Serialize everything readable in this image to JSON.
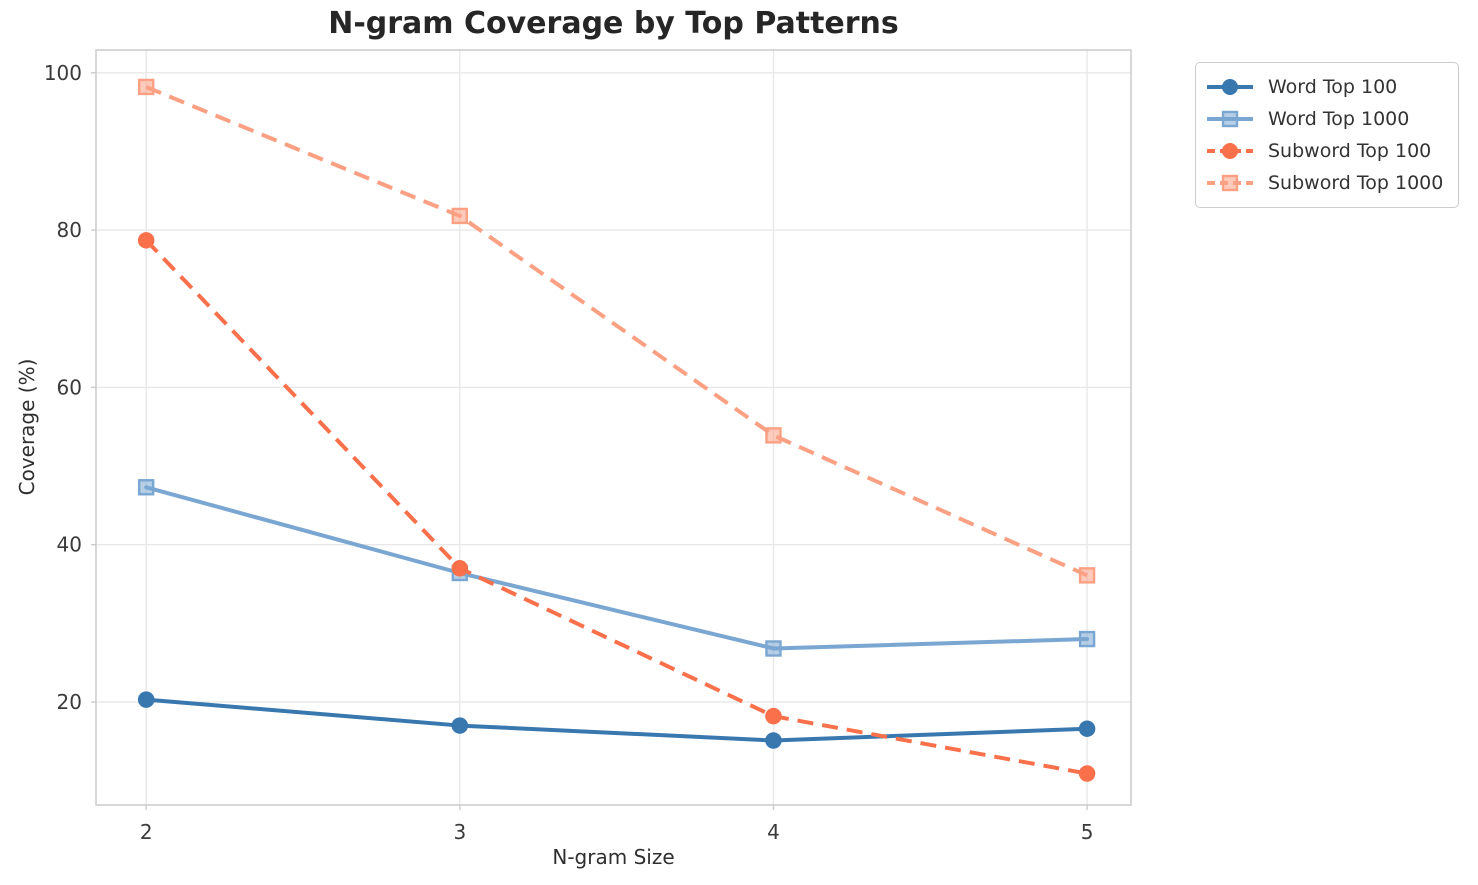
{
  "chart_data": {
    "type": "line",
    "title": "N-gram Coverage by Top Patterns",
    "xlabel": "N-gram Size",
    "ylabel": "Coverage (%)",
    "x": [
      2,
      3,
      4,
      5
    ],
    "xtick_labels": [
      "2",
      "3",
      "4",
      "5"
    ],
    "ytick_values": [
      20,
      40,
      60,
      80,
      100
    ],
    "ytick_labels": [
      "20",
      "40",
      "60",
      "80",
      "100"
    ],
    "xlim": [
      1.84,
      5.14
    ],
    "ylim": [
      6.9,
      102.9
    ],
    "grid": true,
    "legend_position": "upper-right-outside",
    "series": [
      {
        "name": "Word Top 100",
        "values": [
          20.3,
          17.0,
          15.1,
          16.6
        ],
        "color": "#3977af",
        "marker": "circle",
        "line_style": "solid"
      },
      {
        "name": "Word Top 1000",
        "values": [
          47.3,
          36.4,
          26.8,
          28.0
        ],
        "color": "#7aa6d2",
        "marker": "square",
        "line_style": "solid"
      },
      {
        "name": "Subword Top 100",
        "values": [
          78.7,
          37.0,
          18.2,
          10.9
        ],
        "color": "#f9704b",
        "marker": "circle",
        "line_style": "dashed"
      },
      {
        "name": "Subword Top 1000",
        "values": [
          98.2,
          81.8,
          53.9,
          36.1
        ],
        "color": "#fba083",
        "marker": "square",
        "line_style": "dashed"
      }
    ],
    "colors": {
      "background": "#ffffff",
      "grid": "#e8e8e8",
      "spine": "#cbcbcb",
      "tick_label": "#3a3a3a",
      "title": "#262626",
      "axis_label": "#2f2f2f",
      "legend_text": "#333333",
      "legend_border": "#cccccc"
    }
  }
}
